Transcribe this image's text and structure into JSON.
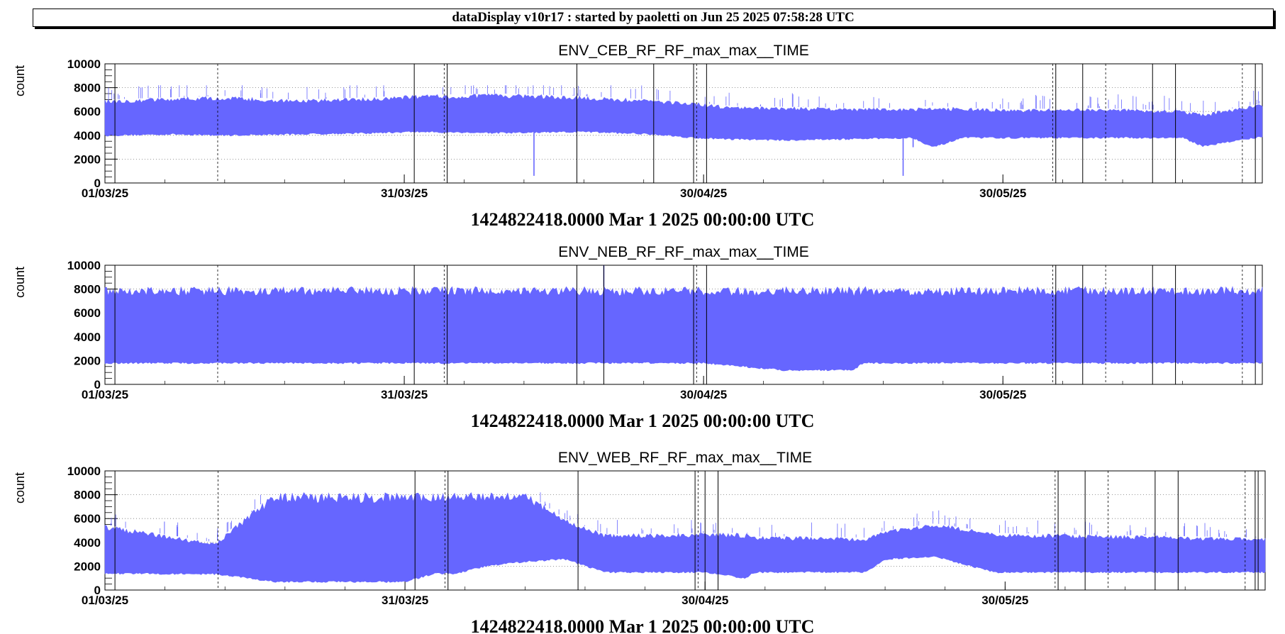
{
  "banner": "dataDisplay v10r17 : started by paoletti on Jun 25 2025 07:58:28 UTC",
  "colors": {
    "series": "#6666ff",
    "grid": "#777777",
    "vline": "#000000"
  },
  "chart_data": [
    {
      "type": "area",
      "title": "ENV_CEB_RF_RF_max_max__TIME",
      "ylabel": "count",
      "xlabel": "1424822418.0000 Mar 1 2025 00:00:00 UTC",
      "xlim": [
        "2025-03-01",
        "2025-06-25"
      ],
      "ylim": [
        0,
        10000
      ],
      "yticks": [
        0,
        2000,
        4000,
        6000,
        8000,
        10000
      ],
      "xticks": [
        "01/03/25",
        "31/03/25",
        "30/04/25",
        "30/05/25"
      ],
      "grid": true,
      "series": [
        {
          "x": [
            "2025-03-01",
            "2025-03-08",
            "2025-03-13",
            "2025-03-20",
            "2025-03-28",
            "2025-04-01",
            "2025-04-10",
            "2025-04-18",
            "2025-04-25",
            "2025-04-29",
            "2025-05-02",
            "2025-05-08",
            "2025-05-15",
            "2025-05-21",
            "2025-05-23",
            "2025-05-26",
            "2025-06-01",
            "2025-06-08",
            "2025-06-12",
            "2025-06-17",
            "2025-06-19",
            "2025-06-25"
          ],
          "low": [
            4000,
            4100,
            4000,
            4100,
            4200,
            4300,
            4200,
            4300,
            4100,
            3800,
            3700,
            3600,
            3700,
            3800,
            3000,
            3800,
            3800,
            3800,
            3800,
            3800,
            3100,
            3900
          ],
          "high": [
            7000,
            7200,
            7300,
            7000,
            7200,
            7400,
            7500,
            7300,
            7000,
            6800,
            6500,
            6400,
            6300,
            6300,
            6500,
            6300,
            6200,
            6300,
            6200,
            6100,
            5800,
            6700
          ],
          "spikes": [
            {
              "x": "2025-04-13",
              "y": 600
            },
            {
              "x": "2025-05-20",
              "y": 600
            },
            {
              "x": "2025-05-21",
              "y": 3000
            }
          ]
        }
      ],
      "vlines": [
        "2025-03-02",
        "2025-03-12",
        "2025-04-01",
        "2025-04-04",
        "2025-04-04",
        "2025-04-17",
        "2025-04-25",
        "2025-04-29",
        "2025-04-29",
        "2025-04-30",
        "2025-06-04",
        "2025-06-04",
        "2025-06-07",
        "2025-06-09",
        "2025-06-14",
        "2025-06-16",
        "2025-06-23",
        "2025-06-24"
      ]
    },
    {
      "type": "area",
      "title": "ENV_NEB_RF_RF_max_max__TIME",
      "ylabel": "count",
      "xlabel": "1424822418.0000 Mar 1 2025 00:00:00 UTC",
      "xlim": [
        "2025-03-01",
        "2025-06-25"
      ],
      "ylim": [
        0,
        10000
      ],
      "yticks": [
        0,
        2000,
        4000,
        6000,
        8000,
        10000
      ],
      "xticks": [
        "01/03/25",
        "31/03/25",
        "30/04/25",
        "30/05/25"
      ],
      "grid": true,
      "series": [
        {
          "x": [
            "2025-03-01",
            "2025-04-01",
            "2025-04-30",
            "2025-05-08",
            "2025-05-15",
            "2025-05-16",
            "2025-06-25"
          ],
          "low": [
            1800,
            1800,
            1800,
            1200,
            1200,
            1800,
            1800
          ],
          "high": [
            8200,
            8200,
            8200,
            8200,
            8200,
            8200,
            8200
          ],
          "spikes": [
            {
              "x": "2025-04-20",
              "y": 10000
            }
          ]
        }
      ],
      "vlines": [
        "2025-03-02",
        "2025-03-12",
        "2025-04-01",
        "2025-04-04",
        "2025-04-04",
        "2025-04-17",
        "2025-04-20",
        "2025-04-29",
        "2025-04-29",
        "2025-04-30",
        "2025-06-04",
        "2025-06-04",
        "2025-06-07",
        "2025-06-09",
        "2025-06-14",
        "2025-06-16",
        "2025-06-23",
        "2025-06-24"
      ]
    },
    {
      "type": "area",
      "title": "ENV_WEB_RF_RF_max_max__TIME",
      "ylabel": "count",
      "xlabel": "1424822418.0000 Mar 1 2025 00:00:00 UTC",
      "xlim": [
        "2025-03-01",
        "2025-06-25"
      ],
      "ylim": [
        0,
        10000
      ],
      "yticks": [
        0,
        2000,
        4000,
        6000,
        8000,
        10000
      ],
      "xticks": [
        "01/03/25",
        "31/03/25",
        "30/04/25",
        "30/05/25"
      ],
      "grid": true,
      "series": [
        {
          "x": [
            "2025-03-01",
            "2025-03-12",
            "2025-03-18",
            "2025-03-31",
            "2025-04-03",
            "2025-04-05",
            "2025-04-08",
            "2025-04-12",
            "2025-04-16",
            "2025-04-20",
            "2025-04-30",
            "2025-05-04",
            "2025-05-05",
            "2025-05-11",
            "2025-05-16",
            "2025-05-18",
            "2025-05-23",
            "2025-05-29",
            "2025-06-25"
          ],
          "low": [
            1400,
            1350,
            700,
            700,
            1400,
            1400,
            2000,
            2400,
            2600,
            1500,
            1500,
            1000,
            1500,
            1500,
            1500,
            2600,
            2800,
            1500,
            1500
          ],
          "high": [
            5500,
            4000,
            8200,
            8200,
            8200,
            8200,
            8200,
            8200,
            6000,
            4700,
            4800,
            4800,
            4500,
            4500,
            4400,
            5000,
            5600,
            4800,
            4400
          ],
          "spikes": []
        }
      ],
      "vlines": [
        "2025-03-02",
        "2025-03-12",
        "2025-04-01",
        "2025-04-04",
        "2025-04-04",
        "2025-04-17",
        "2025-04-29",
        "2025-04-29",
        "2025-04-30",
        "2025-05-01",
        "2025-06-04",
        "2025-06-04",
        "2025-06-07",
        "2025-06-09",
        "2025-06-14",
        "2025-06-16",
        "2025-06-23",
        "2025-06-24",
        "2025-06-24"
      ]
    }
  ]
}
